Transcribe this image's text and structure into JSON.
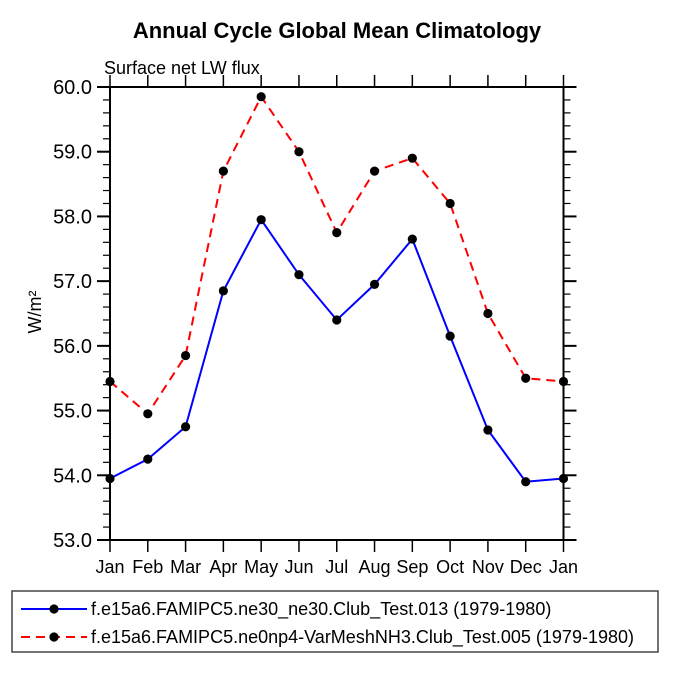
{
  "chart_data": {
    "type": "line",
    "title": "Annual Cycle Global Mean Climatology",
    "subtitle": "Surface net LW flux",
    "ylabel": "W/m²",
    "xlabel": "",
    "categories": [
      "Jan",
      "Feb",
      "Mar",
      "Apr",
      "May",
      "Jun",
      "Jul",
      "Aug",
      "Sep",
      "Oct",
      "Nov",
      "Dec",
      "Jan"
    ],
    "series": [
      {
        "name": "f.e15a6.FAMIPC5.ne30_ne30.Club_Test.013 (1979-1980)",
        "color": "#0000ff",
        "line_style": "solid",
        "marker": "filled-circle",
        "marker_color": "#000000",
        "values": [
          53.95,
          54.25,
          54.75,
          56.85,
          57.95,
          57.1,
          56.4,
          56.95,
          57.65,
          56.15,
          54.7,
          53.9,
          53.95
        ]
      },
      {
        "name": "f.e15a6.FAMIPC5.ne0np4-VarMeshNH3.Club_Test.005 (1979-1980)",
        "color": "#ff0000",
        "line_style": "dashed",
        "marker": "filled-circle",
        "marker_color": "#000000",
        "values": [
          55.45,
          54.95,
          55.85,
          58.7,
          59.85,
          59.0,
          57.75,
          58.7,
          58.9,
          58.2,
          56.5,
          55.5,
          55.45
        ]
      }
    ],
    "ylim": [
      53.0,
      60.0
    ],
    "ytick_values": [
      53,
      54,
      55,
      56,
      57,
      58,
      59,
      60
    ],
    "ytick_labels": [
      "53.0",
      "54.0",
      "55.0",
      "56.0",
      "57.0",
      "58.0",
      "59.0",
      "60.0"
    ],
    "ytick_minor_step": 0.2,
    "grid": false,
    "legend_position": "bottom",
    "frame_color": "#000000",
    "legend_border_color": "#444444"
  }
}
